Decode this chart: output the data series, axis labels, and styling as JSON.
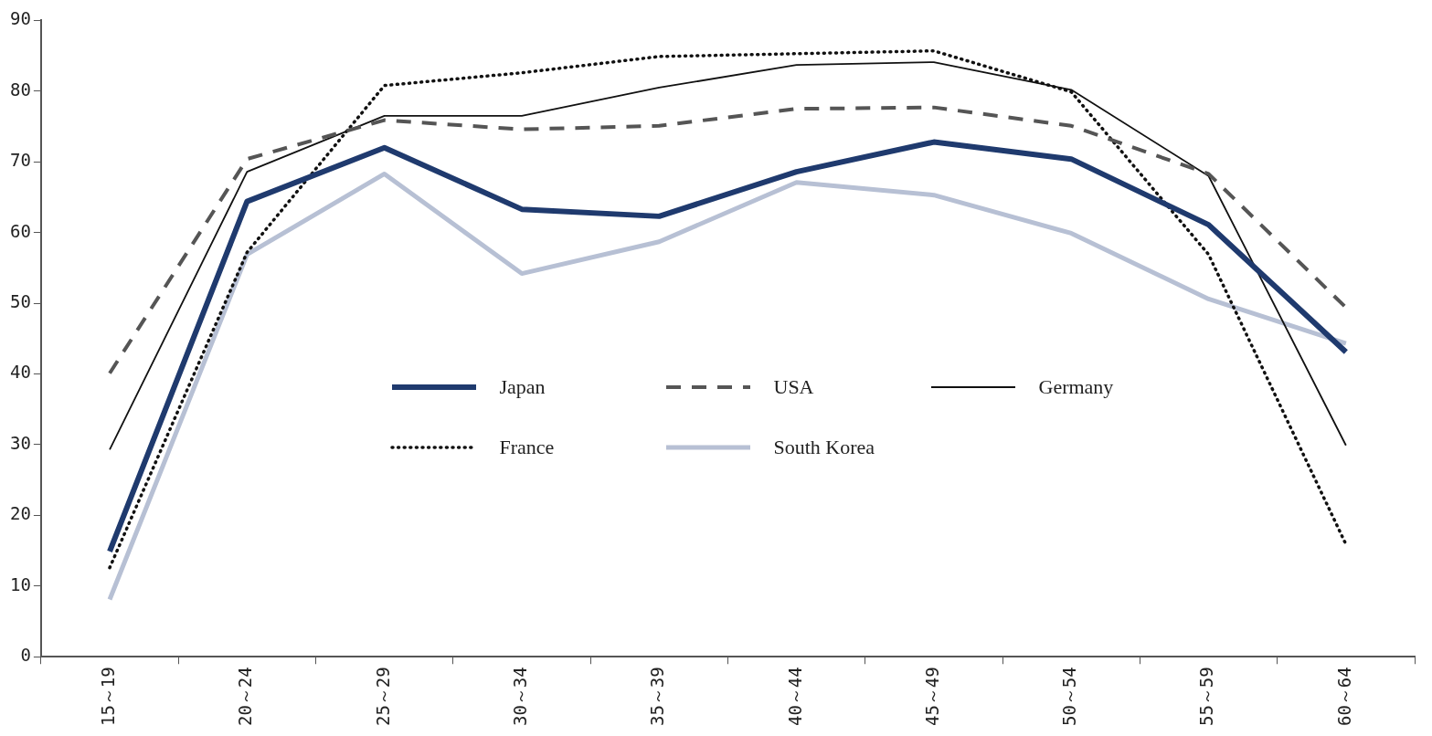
{
  "chart_data": {
    "type": "line",
    "categories": [
      "15～19",
      "20～24",
      "25～29",
      "30～34",
      "35～39",
      "40～44",
      "45～49",
      "50～54",
      "55～59",
      "60～64"
    ],
    "series": [
      {
        "name": "Japan",
        "color": "#1f3a6e",
        "line_style": "solid",
        "values": [
          14.9,
          64.4,
          72.0,
          63.3,
          62.3,
          68.6,
          72.8,
          70.4,
          61.1,
          43.1
        ]
      },
      {
        "name": "USA",
        "color": "#555555",
        "line_style": "dashed",
        "values": [
          40.1,
          70.4,
          75.9,
          74.6,
          75.1,
          77.5,
          77.7,
          75.1,
          68.3,
          49.4
        ]
      },
      {
        "name": "Germany",
        "color": "#111111",
        "line_style": "solid",
        "values": [
          29.3,
          68.6,
          76.5,
          76.5,
          80.5,
          83.7,
          84.1,
          80.2,
          68.0,
          29.9
        ]
      },
      {
        "name": "France",
        "color": "#111111",
        "line_style": "dotted",
        "values": [
          12.6,
          57.2,
          80.8,
          82.6,
          84.9,
          85.3,
          85.7,
          79.9,
          56.9,
          15.9
        ]
      },
      {
        "name": "South Korea",
        "color": "#b7c0d4",
        "line_style": "solid",
        "values": [
          8.1,
          56.9,
          68.3,
          54.2,
          58.7,
          67.1,
          65.3,
          59.9,
          50.6,
          44.3
        ]
      }
    ],
    "ylim": [
      0,
      90
    ],
    "yticks": [
      0,
      10,
      20,
      30,
      40,
      50,
      60,
      70,
      80,
      90
    ],
    "grid": false,
    "legend": "bottom",
    "marker": "none"
  }
}
